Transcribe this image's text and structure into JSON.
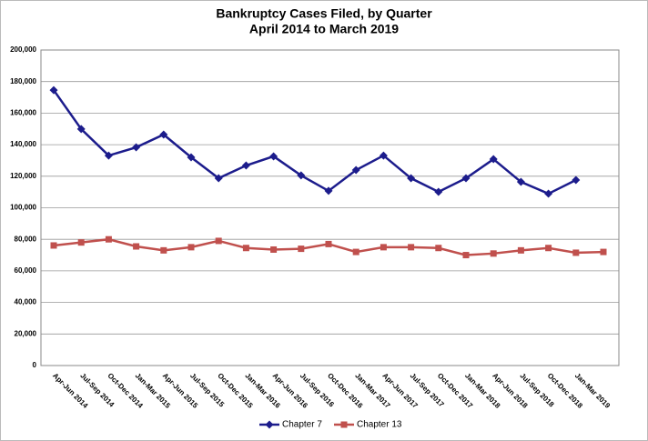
{
  "chart_data": {
    "type": "line",
    "title": "Bankruptcy Cases Filed, by Quarter",
    "subtitle": "April 2014 to March 2019",
    "categories": [
      "Apr-Jun 2014",
      "Jul-Sep 2014",
      "Oct-Dec 2014",
      "Jan-Mar 2015",
      "Apr-Jun 2015",
      "Jul-Sep 2015",
      "Oct-Dec 2015",
      "Jan-Mar 2016",
      "Apr-Jun 2016",
      "Jul-Sep 2016",
      "Oct-Dec 2016",
      "Jan-Mar 2017",
      "Apr-Jun 2017",
      "Jul-Sep 2017",
      "Oct-Dec 2017",
      "Jan-Mar 2018",
      "Apr-Jun 2018",
      "Jul-Sep 2018",
      "Oct-Dec 2018",
      "Jan-Mar 2019",
      null
    ],
    "series": [
      {
        "name": "Chapter 7",
        "color": "#1c1c8c",
        "marker": "diamond",
        "values": [
          174600,
          149900,
          133100,
          138300,
          146400,
          132000,
          118700,
          126800,
          132600,
          120500,
          110700,
          123900,
          133100,
          118700,
          110100,
          118700,
          130800,
          116400,
          108900,
          117600,
          null
        ]
      },
      {
        "name": "Chapter 13",
        "color": "#c0504d",
        "marker": "square",
        "values": [
          76100,
          78000,
          80000,
          75500,
          73000,
          75000,
          79000,
          74500,
          73500,
          74000,
          77000,
          72000,
          75000,
          75000,
          74500,
          70000,
          71000,
          73000,
          74500,
          71500,
          72000
        ]
      }
    ],
    "ylim": [
      0,
      200000
    ],
    "yticks": [
      0,
      {
        "value": 20000,
        "label": "20,000"
      },
      {
        "value": 40000,
        "label": "40,000"
      },
      {
        "value": 60000,
        "label": "60,000"
      },
      {
        "value": 80000,
        "label": "80,000"
      },
      {
        "value": 100000,
        "label": "100,000"
      },
      {
        "value": 120000,
        "label": "120,000"
      },
      {
        "value": 140000,
        "label": "140,000"
      },
      {
        "value": 160000,
        "label": "160,000"
      },
      {
        "value": 180000,
        "label": "180,000"
      },
      {
        "value": 200000,
        "label": "200,000"
      }
    ],
    "grid": true,
    "legend": "bottom"
  }
}
